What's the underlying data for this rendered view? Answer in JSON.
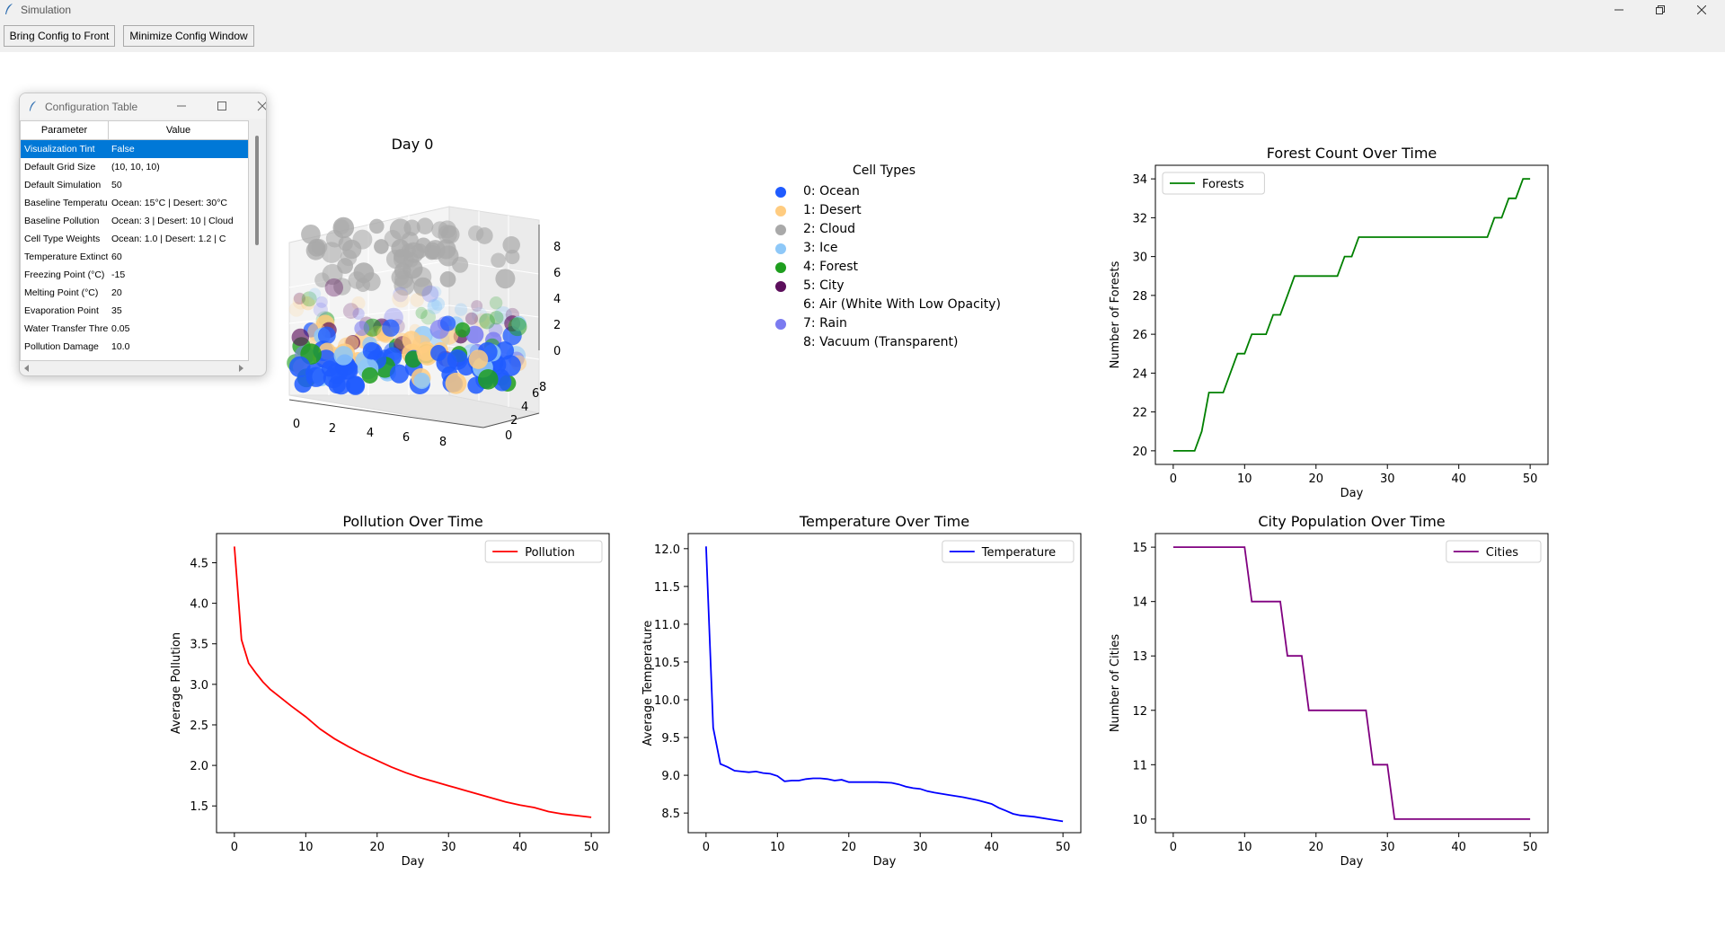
{
  "window": {
    "title": "Simulation"
  },
  "toolbar": {
    "bring_label": "Bring Config to Front",
    "minimize_label": "Minimize Config Window"
  },
  "config_window": {
    "title": "Configuration Table",
    "headers": {
      "parameter": "Parameter",
      "value": "Value"
    },
    "rows": [
      {
        "param": "Visualization Tint",
        "value": "False"
      },
      {
        "param": "Default Grid Size",
        "value": "(10, 10, 10)"
      },
      {
        "param": "Default Simulation",
        "value": "50"
      },
      {
        "param": "Baseline Temperature",
        "value": "Ocean: 15°C | Desert: 30°C"
      },
      {
        "param": "Baseline Pollution",
        "value": "Ocean: 3 | Desert: 10 | Cloud"
      },
      {
        "param": "Cell Type Weights",
        "value": "Ocean: 1.0 | Desert: 1.2 | C"
      },
      {
        "param": "Temperature Extinction",
        "value": "60"
      },
      {
        "param": "Freezing Point (°C)",
        "value": "-15"
      },
      {
        "param": "Melting Point (°C)",
        "value": "20"
      },
      {
        "param": "Evaporation Point",
        "value": "35"
      },
      {
        "param": "Water Transfer Threshold",
        "value": "0.05"
      },
      {
        "param": "Pollution Damage",
        "value": "10.0"
      }
    ]
  },
  "scene3d": {
    "title": "Day 0",
    "x_ticks": [
      "0",
      "2",
      "4",
      "6",
      "8"
    ],
    "y_ticks": [
      "0",
      "2",
      "4",
      "6",
      "8"
    ],
    "z_ticks": [
      "0",
      "2",
      "4",
      "6",
      "8"
    ]
  },
  "legend": {
    "title": "Cell Types",
    "items": [
      {
        "label": "0: Ocean",
        "color": "#1f5bff"
      },
      {
        "label": "1: Desert",
        "color": "#ffcc80"
      },
      {
        "label": "2: Cloud",
        "color": "#a9a9a9"
      },
      {
        "label": "3: Ice",
        "color": "#8ec8f8"
      },
      {
        "label": "4: Forest",
        "color": "#1e9e1e"
      },
      {
        "label": "5: City",
        "color": "#5c0f5c"
      },
      {
        "label": "6: Air (White With Low Opacity)",
        "color": "#ffffff"
      },
      {
        "label": "7: Rain",
        "color": "#7b7bf0"
      },
      {
        "label": "8: Vacuum (Transparent)",
        "color": "transparent"
      }
    ]
  },
  "chart_data": [
    {
      "id": "forest",
      "type": "line",
      "step": true,
      "title": "Forest Count Over Time",
      "xlabel": "Day",
      "ylabel": "Number of Forests",
      "xlim": [
        -2.5,
        52.5
      ],
      "ylim": [
        19.3,
        34.7
      ],
      "xticks": [
        0,
        10,
        20,
        30,
        40,
        50
      ],
      "yticks": [
        20,
        22,
        24,
        26,
        28,
        30,
        32,
        34
      ],
      "legend_position": "upper left",
      "grid": false,
      "series": [
        {
          "name": "Forests",
          "color": "#008000",
          "x": [
            0,
            1,
            2,
            3,
            4,
            5,
            6,
            7,
            8,
            9,
            10,
            11,
            12,
            13,
            14,
            15,
            16,
            17,
            18,
            19,
            20,
            21,
            22,
            23,
            24,
            25,
            26,
            27,
            28,
            29,
            30,
            31,
            32,
            33,
            34,
            35,
            36,
            37,
            38,
            39,
            40,
            41,
            42,
            43,
            44,
            45,
            46,
            47,
            48,
            49,
            50
          ],
          "y": [
            20,
            20,
            20,
            20,
            21,
            23,
            23,
            23,
            24,
            25,
            25,
            26,
            26,
            26,
            27,
            27,
            28,
            29,
            29,
            29,
            29,
            29,
            29,
            29,
            30,
            30,
            31,
            31,
            31,
            31,
            31,
            31,
            31,
            31,
            31,
            31,
            31,
            31,
            31,
            31,
            31,
            31,
            31,
            31,
            31,
            32,
            32,
            33,
            33,
            34,
            34
          ]
        }
      ]
    },
    {
      "id": "pollution",
      "type": "line",
      "title": "Pollution Over Time",
      "xlabel": "Day",
      "ylabel": "Average Pollution",
      "xlim": [
        -2.5,
        52.5
      ],
      "ylim": [
        1.17,
        4.86
      ],
      "xticks": [
        0,
        10,
        20,
        30,
        40,
        50
      ],
      "yticks": [
        1.5,
        2.0,
        2.5,
        3.0,
        3.5,
        4.0,
        4.5
      ],
      "legend_position": "upper right",
      "grid": false,
      "series": [
        {
          "name": "Pollution",
          "color": "#ff0000",
          "x": [
            0,
            1,
            2,
            3,
            4,
            5,
            6,
            8,
            10,
            12,
            14,
            16,
            18,
            20,
            22,
            24,
            26,
            28,
            30,
            32,
            34,
            36,
            38,
            40,
            42,
            44,
            46,
            48,
            50
          ],
          "y": [
            4.7,
            3.55,
            3.26,
            3.14,
            3.03,
            2.94,
            2.87,
            2.73,
            2.6,
            2.45,
            2.33,
            2.23,
            2.14,
            2.06,
            1.98,
            1.91,
            1.85,
            1.8,
            1.75,
            1.7,
            1.65,
            1.6,
            1.55,
            1.51,
            1.48,
            1.43,
            1.4,
            1.38,
            1.36
          ]
        }
      ]
    },
    {
      "id": "temperature",
      "type": "line",
      "title": "Temperature Over Time",
      "xlabel": "Day",
      "ylabel": "Average Temperature",
      "xlim": [
        -2.5,
        52.5
      ],
      "ylim": [
        8.24,
        12.2
      ],
      "xticks": [
        0,
        10,
        20,
        30,
        40,
        50
      ],
      "yticks": [
        8.5,
        9.0,
        9.5,
        10.0,
        10.5,
        11.0,
        11.5,
        12.0
      ],
      "legend_position": "upper right",
      "grid": false,
      "series": [
        {
          "name": "Temperature",
          "color": "#0000ff",
          "x": [
            0,
            1,
            2,
            3,
            4,
            5,
            6,
            7,
            8,
            9,
            10,
            11,
            12,
            13,
            14,
            15,
            16,
            17,
            18,
            19,
            20,
            22,
            24,
            26,
            27,
            28,
            29,
            30,
            31,
            32,
            34,
            36,
            38,
            40,
            41,
            42,
            43,
            44,
            46,
            48,
            50
          ],
          "y": [
            12.03,
            9.63,
            9.15,
            9.11,
            9.06,
            9.05,
            9.04,
            9.05,
            9.03,
            9.02,
            8.99,
            8.92,
            8.93,
            8.93,
            8.95,
            8.96,
            8.96,
            8.95,
            8.93,
            8.94,
            8.91,
            8.91,
            8.91,
            8.9,
            8.88,
            8.85,
            8.83,
            8.82,
            8.79,
            8.77,
            8.74,
            8.71,
            8.67,
            8.62,
            8.57,
            8.53,
            8.49,
            8.47,
            8.45,
            8.42,
            8.39
          ]
        }
      ]
    },
    {
      "id": "city",
      "type": "line",
      "step": true,
      "title": "City Population Over Time",
      "xlabel": "Day",
      "ylabel": "Number of Cities",
      "xlim": [
        -2.5,
        52.5
      ],
      "ylim": [
        9.75,
        15.25
      ],
      "xticks": [
        0,
        10,
        20,
        30,
        40,
        50
      ],
      "yticks": [
        10,
        11,
        12,
        13,
        14,
        15
      ],
      "legend_position": "upper right",
      "grid": false,
      "series": [
        {
          "name": "Cities",
          "color": "#800080",
          "x": [
            0,
            10,
            11,
            15,
            16,
            18,
            19,
            27,
            28,
            30,
            31,
            50
          ],
          "y": [
            15,
            15,
            14,
            14,
            13,
            13,
            12,
            12,
            11,
            11,
            10,
            10
          ]
        }
      ]
    }
  ]
}
